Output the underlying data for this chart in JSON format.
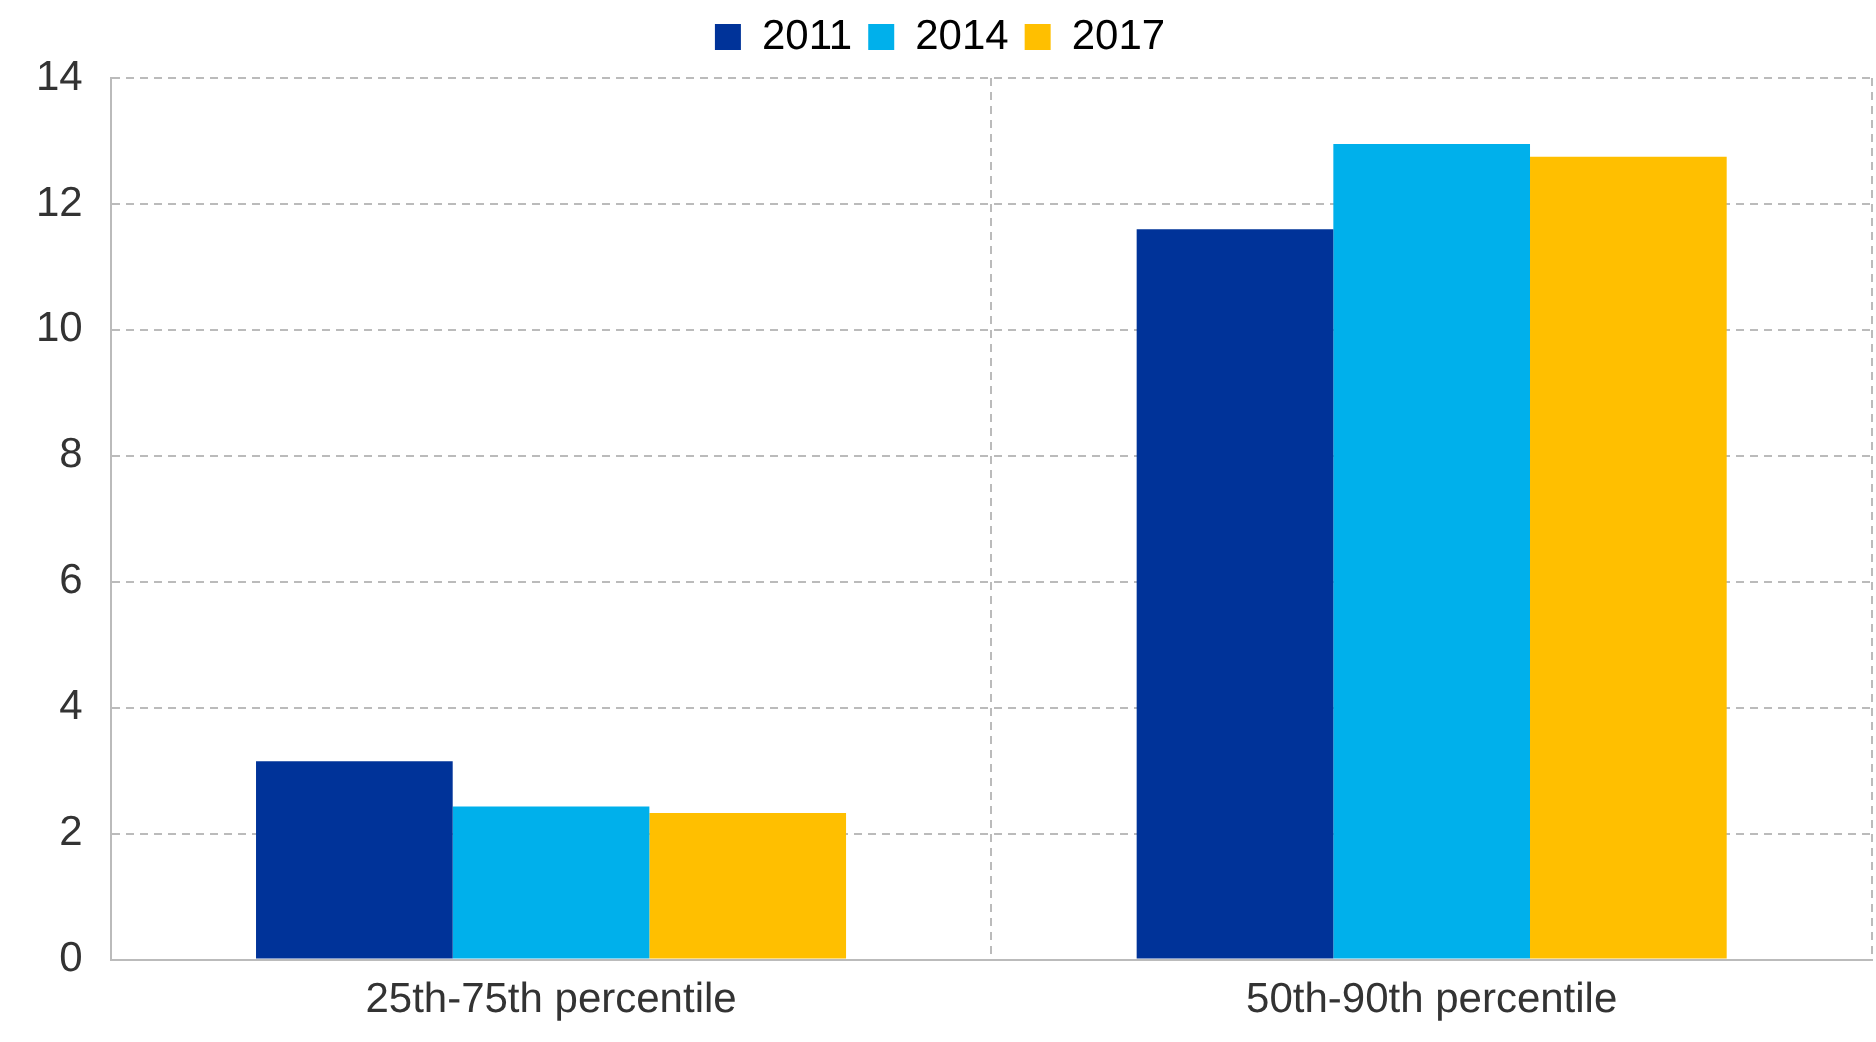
{
  "chart_data": {
    "type": "bar",
    "categories": [
      "25th-75th percentile",
      "50th-90th percentile"
    ],
    "series": [
      {
        "name": "2011",
        "color": "#003399",
        "values": [
          3.15,
          11.6
        ]
      },
      {
        "name": "2014",
        "color": "#00b0eb",
        "values": [
          2.43,
          12.95
        ]
      },
      {
        "name": "2017",
        "color": "#ffbf00",
        "values": [
          2.33,
          12.75
        ]
      }
    ],
    "ylim": [
      0,
      14
    ],
    "yticks": [
      0,
      2,
      4,
      6,
      8,
      10,
      12,
      14
    ],
    "grid": true,
    "legend": "top"
  }
}
